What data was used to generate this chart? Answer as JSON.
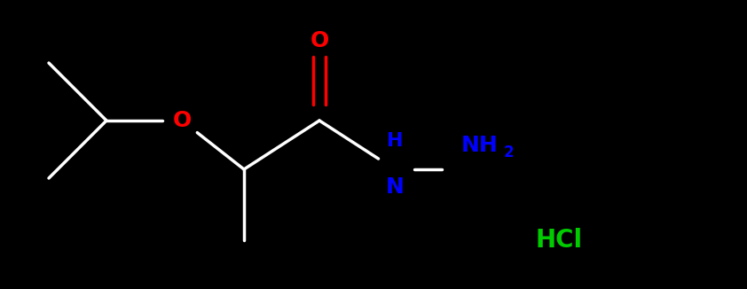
{
  "background_color": "#000000",
  "bond_color": "#ffffff",
  "oxygen_color": "#ff0000",
  "nitrogen_color": "#0000ff",
  "hcl_color": "#00cc00",
  "bond_lw": 2.5,
  "font_size_atom": 18,
  "font_size_sub": 12,
  "font_size_hcl": 20,
  "fig_width": 8.42,
  "fig_height": 3.26,
  "dpi": 100,
  "xlim": [
    0,
    8.42
  ],
  "ylim": [
    0,
    3.26
  ],
  "points": {
    "ch3_tl": [
      0.55,
      2.55
    ],
    "ch_iso": [
      1.2,
      1.9
    ],
    "ch3_bl": [
      0.55,
      1.25
    ],
    "o_eth": [
      2.05,
      1.9
    ],
    "ch_chir": [
      2.75,
      1.35
    ],
    "ch3_dn": [
      2.75,
      0.55
    ],
    "c_carb": [
      3.6,
      1.9
    ],
    "o_carb": [
      3.6,
      2.8
    ],
    "n_nh": [
      4.45,
      1.35
    ],
    "n_nh2": [
      5.2,
      1.35
    ],
    "hcl": [
      6.3,
      0.55
    ]
  }
}
